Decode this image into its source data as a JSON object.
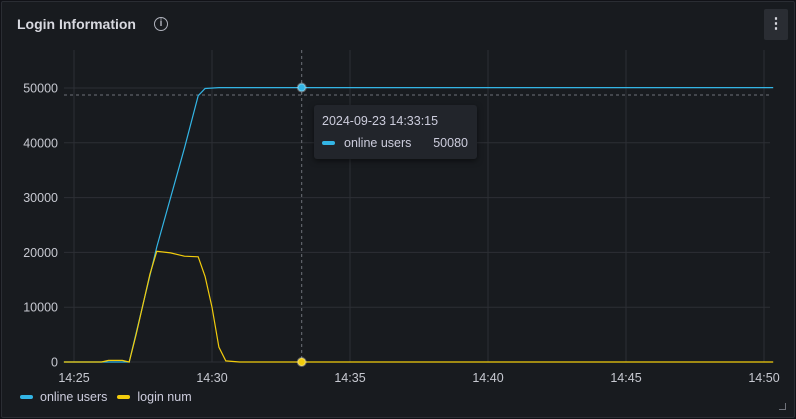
{
  "panel": {
    "title": "Login Information",
    "info_icon": "info-circle-icon",
    "menu_icon": "kebab-menu-icon"
  },
  "tooltip": {
    "time": "2024-09-23 14:33:15",
    "series": "online users",
    "value": "50080"
  },
  "chart_data": {
    "type": "line",
    "title": "Login Information",
    "xlabel": "",
    "ylabel": "",
    "x_ticks": [
      "14:25",
      "14:30",
      "14:35",
      "14:40",
      "14:45",
      "14:50"
    ],
    "y_ticks": [
      "0",
      "10000",
      "20000",
      "30000",
      "40000",
      "50000"
    ],
    "ylim": [
      0,
      54000
    ],
    "xlim": [
      "14:24:38",
      "14:50:20"
    ],
    "grid": true,
    "legend": "bottom-left",
    "series": [
      {
        "name": "online users",
        "color": "#33b5e5",
        "points": [
          [
            "14:24:38",
            0
          ],
          [
            "14:27:00",
            0
          ],
          [
            "14:28:00",
            21000
          ],
          [
            "14:29:00",
            39000
          ],
          [
            "14:29:30",
            48600
          ],
          [
            "14:29:45",
            49900
          ],
          [
            "14:30:15",
            50080
          ],
          [
            "14:50:20",
            50080
          ]
        ]
      },
      {
        "name": "login num",
        "color": "#f2cc0c",
        "points": [
          [
            "14:24:38",
            0
          ],
          [
            "14:26:00",
            0
          ],
          [
            "14:26:15",
            300
          ],
          [
            "14:26:45",
            300
          ],
          [
            "14:27:00",
            0
          ],
          [
            "14:27:15",
            5000
          ],
          [
            "14:27:45",
            16000
          ],
          [
            "14:28:00",
            20200
          ],
          [
            "14:28:30",
            19900
          ],
          [
            "14:29:00",
            19300
          ],
          [
            "14:29:30",
            19200
          ],
          [
            "14:29:45",
            15600
          ],
          [
            "14:30:00",
            10000
          ],
          [
            "14:30:15",
            2700
          ],
          [
            "14:30:30",
            200
          ],
          [
            "14:31:00",
            0
          ],
          [
            "14:50:20",
            0
          ]
        ]
      }
    ],
    "hover": {
      "time": "14:33:15"
    }
  }
}
